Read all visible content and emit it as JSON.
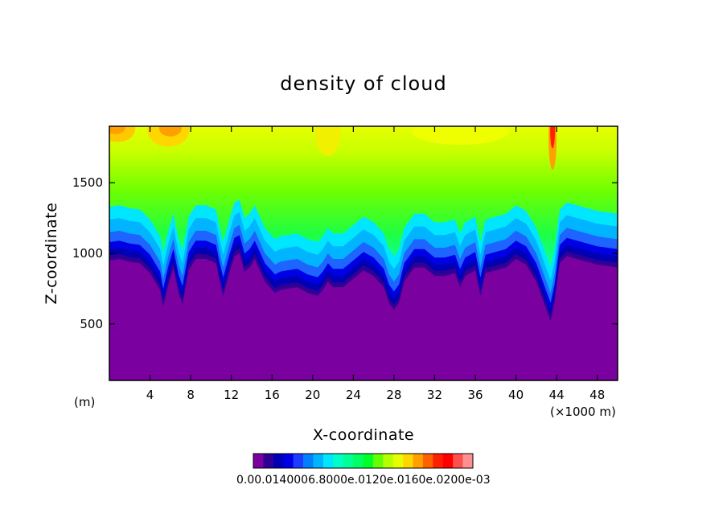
{
  "chart_data": {
    "type": "heatmap",
    "title": "density of cloud",
    "xlabel": "X-coordinate",
    "ylabel": "Z-coordinate",
    "x_unit": "(×1000 m)",
    "y_unit": "(m)",
    "xlim": [
      0,
      50
    ],
    "ylim": [
      100,
      1900
    ],
    "x_ticks": [
      4,
      8,
      12,
      16,
      20,
      24,
      28,
      32,
      36,
      40,
      44,
      48
    ],
    "x_tick_labels": [
      "4",
      "8",
      "12",
      "16",
      "20",
      "24",
      "28",
      "32",
      "36",
      "40",
      "44",
      "48"
    ],
    "y_ticks": [
      500,
      1000,
      1500
    ],
    "y_tick_labels": [
      "500",
      "1000",
      "1500"
    ],
    "colorbar": {
      "colors": [
        "#7a00a0",
        "#300096",
        "#0000b4",
        "#0000e6",
        "#1e3cff",
        "#0080ff",
        "#00b4ff",
        "#00e6ff",
        "#00ffc8",
        "#00ff96",
        "#00ff64",
        "#00ff28",
        "#64ff00",
        "#b4ff00",
        "#e6ff00",
        "#ffd700",
        "#ffa000",
        "#ff6000",
        "#ff2000",
        "#ff0000",
        "#ff5050",
        "#ff9090"
      ],
      "labels_text": "0.00.0140006.8000e.0120e.0160e.0200e-03"
    },
    "surface_profile": {
      "x": [
        0,
        1,
        2,
        3,
        4,
        5,
        5.3,
        5.8,
        6.3,
        6.8,
        7.2,
        7.8,
        8.5,
        9.5,
        10.5,
        10.8,
        11.2,
        11.8,
        12.3,
        12.8,
        13.3,
        13.8,
        14.3,
        14.8,
        15.3,
        15.8,
        16.3,
        16.8,
        17.5,
        18.5,
        19.5,
        20.5,
        21,
        21.5,
        22,
        23,
        24,
        25,
        26,
        27,
        27.5,
        28,
        28.5,
        29,
        30,
        31,
        32,
        33,
        34,
        34.5,
        35,
        36,
        36.5,
        37,
        38,
        39,
        40,
        41,
        42,
        43,
        43.4,
        43.8,
        44.3,
        45,
        46,
        47,
        48,
        49,
        50
      ],
      "z": [
        950,
        960,
        940,
        930,
        860,
        740,
        620,
        780,
        900,
        720,
        640,
        880,
        960,
        960,
        930,
        820,
        700,
        860,
        980,
        1000,
        870,
        900,
        960,
        880,
        800,
        760,
        720,
        740,
        750,
        760,
        720,
        700,
        740,
        800,
        760,
        760,
        820,
        880,
        840,
        760,
        650,
        600,
        650,
        800,
        900,
        900,
        840,
        840,
        860,
        760,
        840,
        880,
        700,
        860,
        880,
        900,
        960,
        920,
        800,
        600,
        520,
        650,
        930,
        980,
        960,
        940,
        920,
        910,
        900
      ]
    }
  }
}
